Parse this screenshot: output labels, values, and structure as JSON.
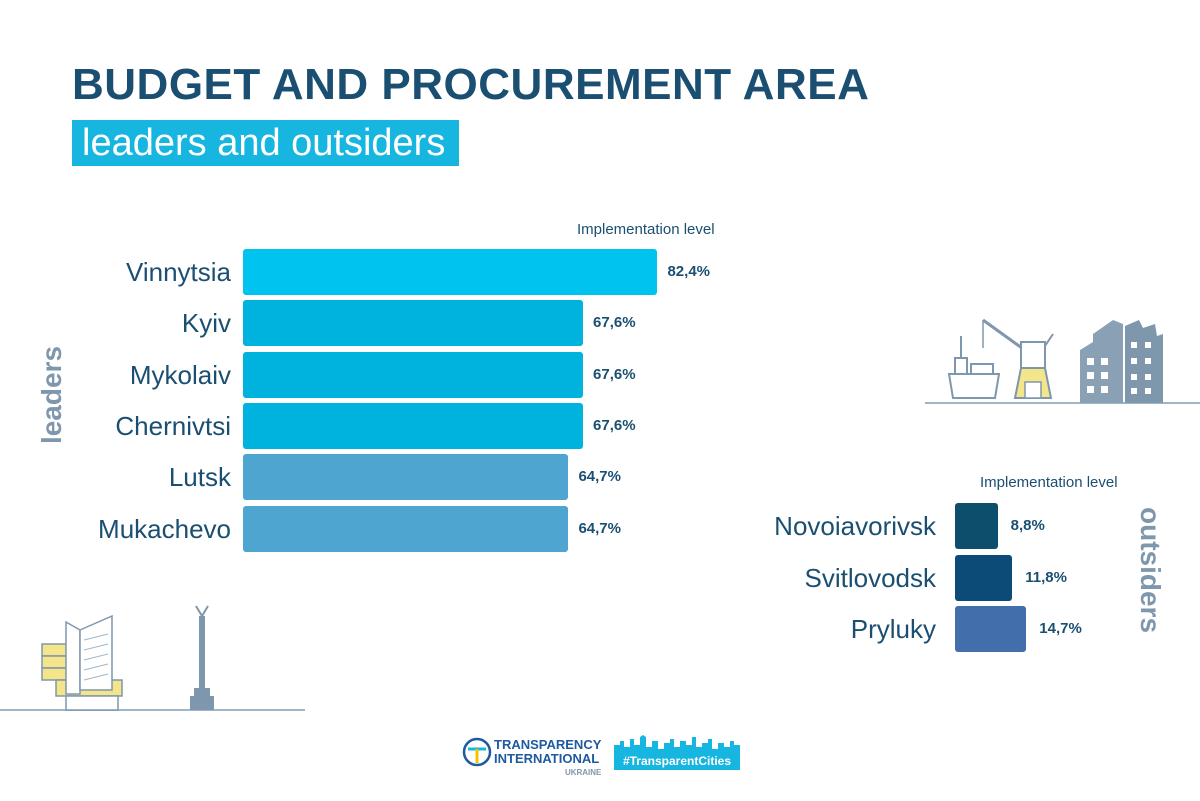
{
  "title": "BUDGET AND PROCUREMENT AREA",
  "subtitle": "leaders and outsiders",
  "colors": {
    "title": "#1b4f72",
    "accent": "#17b6e0",
    "side_label": "#7f97ad"
  },
  "chart_data": [
    {
      "type": "bar",
      "orientation": "horizontal",
      "group_label": "leaders",
      "value_label": "Implementation level",
      "categories": [
        "Vinnytsia",
        "Kyiv",
        "Mykolaiv",
        "Chernivtsi",
        "Lutsk",
        "Mukachevo"
      ],
      "values": [
        82.4,
        67.6,
        67.6,
        67.6,
        64.7,
        64.7
      ],
      "value_labels": [
        "82,4%",
        "67,6%",
        "67,6%",
        "67,6%",
        "64,7%",
        "64,7%"
      ],
      "colors": [
        "#00c4ef",
        "#00b3de",
        "#00b3de",
        "#00b3de",
        "#4ea6d0",
        "#4ea6d0"
      ]
    },
    {
      "type": "bar",
      "orientation": "horizontal",
      "group_label": "outsiders",
      "value_label": "Implementation level",
      "categories": [
        "Novoiavorivsk",
        "Svitlovodsk",
        "Pryluky"
      ],
      "values": [
        8.8,
        11.8,
        14.7
      ],
      "value_labels": [
        "8,8%",
        "11,8%",
        "14,7%"
      ],
      "colors": [
        "#0d4e6c",
        "#0c4a78",
        "#426fab"
      ]
    }
  ],
  "logos": {
    "ti_line1": "TRANSPARENCY",
    "ti_line2": "INTERNATIONAL",
    "ti_line3": "UKRAINE",
    "tc": "#TransparentCities"
  }
}
